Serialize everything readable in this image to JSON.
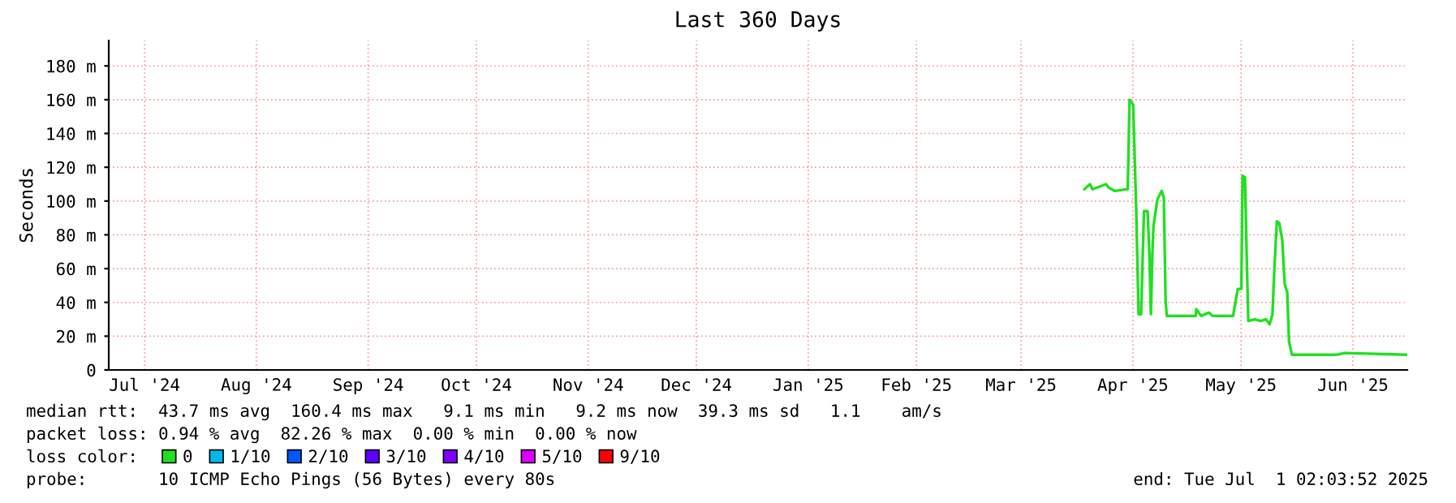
{
  "chart_data": {
    "type": "line",
    "title": "Last 360 Days",
    "ylabel": "Seconds",
    "legend_title": "loss color:",
    "legend": "bottom",
    "grid": true,
    "x": [
      "2025-04-02T14:00",
      "2025-04-04T02:00",
      "2025-04-04T19:00",
      "2025-04-08T14:00",
      "2025-04-09T07:00",
      "2025-04-10T22:00",
      "2025-04-14T14:00",
      "2025-04-15T02:00",
      "2025-04-16T02:00",
      "2025-04-16T22:00",
      "2025-04-17T14:00",
      "2025-04-18T07:00",
      "2025-04-19T02:00",
      "2025-04-20T02:00",
      "2025-04-20T14:00",
      "2025-04-21T00:00",
      "2025-04-21T10:00",
      "2025-04-21T17:00",
      "2025-04-22T19:00",
      "2025-04-24T00:00",
      "2025-04-24T14:00",
      "2025-04-25T02:00",
      "2025-04-25T10:00",
      "2025-05-03T10:00",
      "2025-05-03T14:00",
      "2025-05-04T22:00",
      "2025-05-07T02:00",
      "2025-05-08T02:00",
      "2025-05-13T19:00",
      "2025-05-15T02:00",
      "2025-05-16T02:00",
      "2025-05-16T10:00",
      "2025-05-17T02:00",
      "2025-05-17T14:00",
      "2025-05-18T00:00",
      "2025-05-19T19:00",
      "2025-05-21T10:00",
      "2025-05-22T22:00",
      "2025-05-23T22:00",
      "2025-05-24T17:00",
      "2025-05-25T05:00",
      "2025-05-25T22:00",
      "2025-05-26T14:00",
      "2025-05-27T10:00",
      "2025-05-28T02:00",
      "2025-05-28T19:00",
      "2025-05-29T07:00",
      "2025-05-30T02:00",
      "2025-06-11T10:00",
      "2025-06-13T17:00",
      "2025-07-01T02:00"
    ],
    "series": [
      {
        "name": "0",
        "color": "#20e020",
        "values": [
          107,
          110,
          107,
          110,
          108,
          106,
          107,
          160,
          157,
          96,
          33,
          33,
          94,
          94,
          69,
          33,
          69,
          85,
          101,
          106,
          102,
          40,
          32,
          32,
          36,
          32,
          34,
          32,
          32,
          48,
          48,
          115,
          114,
          65,
          29,
          30,
          29,
          30,
          27,
          33,
          59,
          88,
          87,
          77,
          51,
          46,
          17,
          9,
          9,
          10,
          9
        ]
      },
      {
        "name": "1/10",
        "color": "#00b8f0",
        "values": [
          null,
          null,
          null,
          null,
          null,
          null,
          null,
          null,
          null,
          null,
          null,
          null,
          null,
          null,
          null,
          null,
          null,
          null,
          null,
          null,
          null,
          null,
          null,
          null,
          null,
          null,
          null,
          null,
          null,
          null,
          null,
          null,
          null,
          null,
          null,
          null,
          null,
          null,
          null,
          null,
          null,
          null,
          null,
          null,
          null,
          null,
          null,
          null,
          null,
          null,
          null
        ]
      },
      {
        "name": "2/10",
        "color": "#0059ff",
        "values": [
          null,
          null,
          null,
          null,
          null,
          null,
          null,
          null,
          null,
          null,
          null,
          null,
          null,
          null,
          null,
          null,
          null,
          null,
          null,
          null,
          null,
          null,
          null,
          null,
          null,
          null,
          null,
          null,
          null,
          null,
          null,
          null,
          null,
          null,
          null,
          null,
          null,
          null,
          null,
          null,
          null,
          null,
          null,
          null,
          null,
          null,
          null,
          null,
          null,
          null,
          null
        ]
      },
      {
        "name": "3/10",
        "color": "#5e00ff",
        "values": [
          null,
          null,
          null,
          null,
          null,
          null,
          null,
          null,
          null,
          null,
          null,
          null,
          null,
          null,
          null,
          null,
          null,
          null,
          null,
          null,
          null,
          null,
          null,
          null,
          null,
          null,
          null,
          null,
          null,
          null,
          null,
          null,
          null,
          null,
          null,
          null,
          null,
          null,
          null,
          null,
          null,
          null,
          null,
          null,
          null,
          null,
          null,
          null,
          null,
          null,
          null
        ]
      },
      {
        "name": "4/10",
        "color": "#7e00ff",
        "values": [
          null,
          null,
          null,
          null,
          null,
          null,
          null,
          null,
          null,
          null,
          null,
          null,
          null,
          null,
          null,
          null,
          null,
          null,
          null,
          null,
          null,
          null,
          null,
          null,
          null,
          null,
          null,
          null,
          null,
          null,
          null,
          null,
          null,
          null,
          null,
          null,
          null,
          null,
          null,
          null,
          null,
          null,
          null,
          null,
          null,
          null,
          null,
          null,
          null,
          null,
          null
        ]
      },
      {
        "name": "5/10",
        "color": "#dd00ff",
        "values": [
          null,
          null,
          null,
          null,
          null,
          null,
          null,
          null,
          null,
          null,
          null,
          null,
          null,
          null,
          null,
          null,
          null,
          null,
          null,
          null,
          null,
          null,
          null,
          null,
          null,
          null,
          null,
          null,
          null,
          null,
          null,
          null,
          null,
          null,
          null,
          null,
          null,
          null,
          null,
          null,
          null,
          null,
          null,
          null,
          null,
          null,
          null,
          null,
          null,
          null,
          null
        ]
      },
      {
        "name": "9/10",
        "color": "#ff0000",
        "values": [
          null,
          null,
          null,
          null,
          null,
          null,
          null,
          null,
          null,
          null,
          null,
          null,
          null,
          null,
          null,
          null,
          null,
          null,
          null,
          null,
          null,
          null,
          null,
          null,
          null,
          null,
          null,
          null,
          null,
          null,
          null,
          null,
          null,
          null,
          null,
          null,
          null,
          null,
          null,
          null,
          null,
          null,
          null,
          null,
          null,
          null,
          null,
          null,
          null,
          null,
          null
        ]
      }
    ],
    "xlim": [
      "2024-07-06T02:00",
      "2025-07-01T02:00"
    ],
    "xticks": [
      {
        "value": "2024-07-16",
        "label": "Jul '24"
      },
      {
        "value": "2024-08-16",
        "label": "Aug '24"
      },
      {
        "value": "2024-09-16",
        "label": "Sep '24"
      },
      {
        "value": "2024-10-16",
        "label": "Oct '24"
      },
      {
        "value": "2024-11-16",
        "label": "Nov '24"
      },
      {
        "value": "2024-12-16",
        "label": "Dec '24"
      },
      {
        "value": "2025-01-16",
        "label": "Jan '25"
      },
      {
        "value": "2025-02-15",
        "label": "Feb '25"
      },
      {
        "value": "2025-03-16",
        "label": "Mar '25"
      },
      {
        "value": "2025-04-16",
        "label": "Apr '25"
      },
      {
        "value": "2025-05-16",
        "label": "May '25"
      },
      {
        "value": "2025-06-16",
        "label": "Jun '25"
      }
    ],
    "ylim": [
      0,
      195
    ],
    "yticks": [
      0,
      {
        "value": 20,
        "label": "20 m"
      },
      {
        "value": 40,
        "label": "40 m"
      },
      {
        "value": 60,
        "label": "60 m"
      },
      {
        "value": 80,
        "label": "80 m"
      },
      {
        "value": 100,
        "label": "100 m"
      },
      {
        "value": 120,
        "label": "120 m"
      },
      {
        "value": 140,
        "label": "140 m"
      },
      {
        "value": 160,
        "label": "160 m"
      },
      {
        "value": 180,
        "label": "180 m"
      }
    ],
    "annotations": [
      "median rtt:  43.7 ms avg  160.4 ms max   9.1 ms min   9.2 ms now  39.3 ms sd   1.1    am/s",
      "packet loss: 0.94 % avg  82.26 % max  0.00 % min  0.00 % now",
      "probe:       10 ICMP Echo Pings (56 Bytes) every 80s",
      "end: Tue Jul  1 02:03:52 2025"
    ]
  }
}
